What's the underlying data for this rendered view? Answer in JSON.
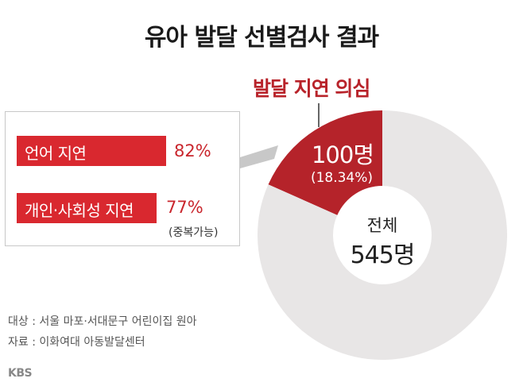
{
  "title": "유아 발달 선별검사 결과",
  "chart_data": {
    "type": "pie",
    "slices": [
      {
        "label": "발달 지연 의심",
        "value": 100,
        "percent": 18.34,
        "color": "#b5232a"
      },
      {
        "label": "",
        "value": 445,
        "color": "#e8e6e6"
      }
    ],
    "callout_label": "발달 지연 의심",
    "slice_value_text": "100명",
    "slice_percent_text": "(18.34%)",
    "total_label": "전체",
    "total_value_text": "545명"
  },
  "breakdown": {
    "items": [
      {
        "label": "언어 지연",
        "value": 82,
        "value_text": "82%"
      },
      {
        "label": "개인·사회성 지연",
        "value": 77,
        "value_text": "77%"
      }
    ],
    "note": "(중복가능)",
    "bar_color": "#d9282f"
  },
  "source": {
    "subject": "대상 : 서울 마포·서대문구 어린이집 원아",
    "data": "자료 : 이화여대 아동발달센터"
  },
  "logo": "KBS"
}
